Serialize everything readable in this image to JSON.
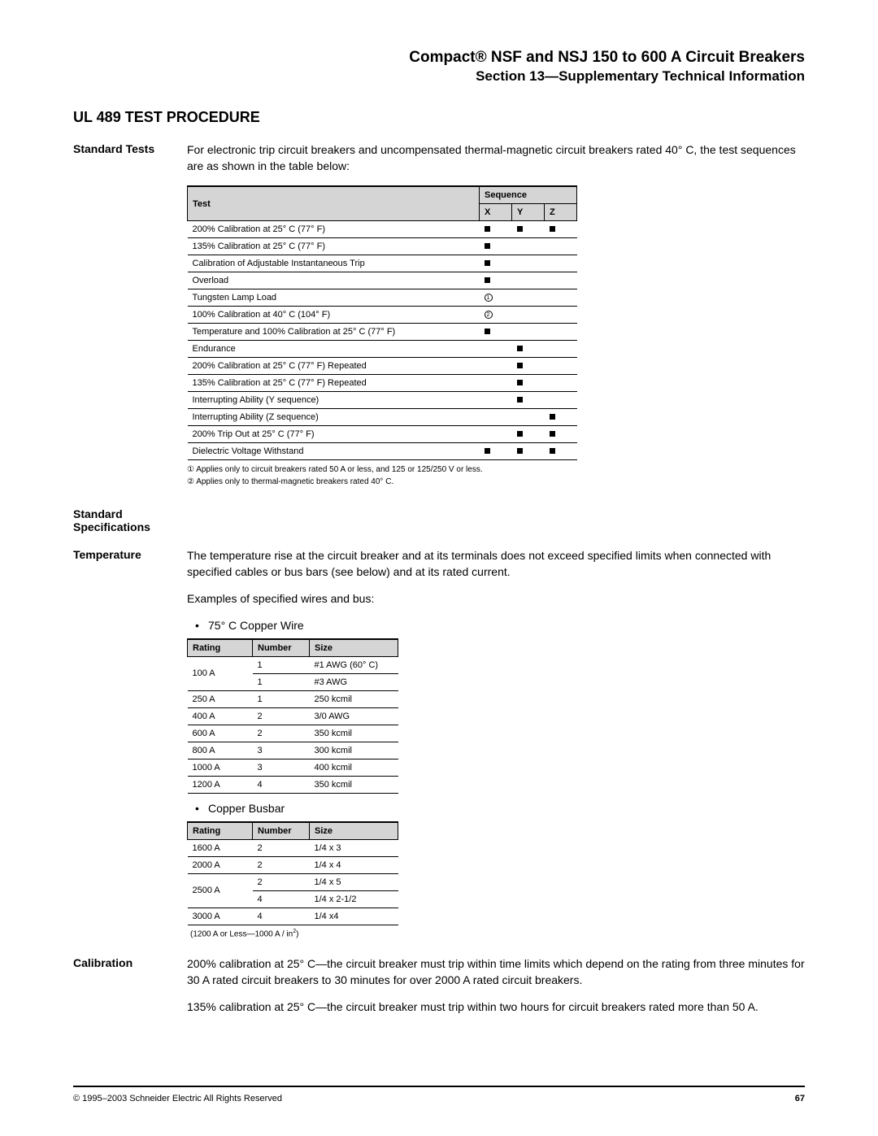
{
  "header": {
    "title": "Compact® NSF and NSJ 150 to 600 A Circuit Breakers",
    "subtitle": "Section 13—Supplementary Technical Information"
  },
  "section_heading": "UL 489 TEST PROCEDURE",
  "standard_tests": {
    "label": "Standard Tests",
    "intro": "For electronic trip circuit breakers and uncompensated thermal-magnetic circuit breakers rated 40° C, the test sequences are as shown in the table below:",
    "table": {
      "col_test": "Test",
      "col_sequence": "Sequence",
      "col_x": "X",
      "col_y": "Y",
      "col_z": "Z",
      "rows": [
        {
          "test": "200% Calibration at 25° C (77° F)",
          "x": "■",
          "y": "■",
          "z": "■"
        },
        {
          "test": "135% Calibration at 25° C (77° F)",
          "x": "■",
          "y": "",
          "z": ""
        },
        {
          "test": "Calibration of Adjustable Instantaneous Trip",
          "x": "■",
          "y": "",
          "z": ""
        },
        {
          "test": "Overload",
          "x": "■",
          "y": "",
          "z": ""
        },
        {
          "test": "Tungsten Lamp Load",
          "x": "①",
          "y": "",
          "z": ""
        },
        {
          "test": "100% Calibration at 40° C (104° F)",
          "x": "②",
          "y": "",
          "z": ""
        },
        {
          "test": "Temperature and 100% Calibration at 25° C (77° F)",
          "x": "■",
          "y": "",
          "z": ""
        },
        {
          "test": "Endurance",
          "x": "",
          "y": "■",
          "z": ""
        },
        {
          "test": "200% Calibration at 25° C (77° F) Repeated",
          "x": "",
          "y": "■",
          "z": ""
        },
        {
          "test": "135% Calibration at 25° C (77° F) Repeated",
          "x": "",
          "y": "■",
          "z": ""
        },
        {
          "test": "Interrupting Ability (Y sequence)",
          "x": "",
          "y": "■",
          "z": ""
        },
        {
          "test": "Interrupting Ability (Z sequence)",
          "x": "",
          "y": "",
          "z": "■"
        },
        {
          "test": "200% Trip Out at 25° C (77° F)",
          "x": "",
          "y": "■",
          "z": "■"
        },
        {
          "test": "Dielectric Voltage Withstand",
          "x": "■",
          "y": "■",
          "z": "■"
        }
      ]
    },
    "footnote1": "① Applies only to circuit breakers rated 50 A or less, and 125 or 125/250 V or less.",
    "footnote2": "② Applies only to thermal-magnetic breakers rated 40° C."
  },
  "standard_specs": {
    "label_line1": "Standard",
    "label_line2": "Specifications"
  },
  "temperature": {
    "label": "Temperature",
    "para1": "The temperature rise at the circuit breaker and at its terminals does not exceed specified limits when connected with specified cables or bus bars (see below) and at its rated current.",
    "para2": "Examples of specified wires and bus:",
    "bullet1": "75° C Copper Wire",
    "wire_table": {
      "col_rating": "Rating",
      "col_number": "Number",
      "col_size": "Size",
      "rows": [
        {
          "rating": "100 A",
          "number": "1",
          "size": "#1 AWG (60° C)",
          "rowspan": 2
        },
        {
          "rating": "",
          "number": "1",
          "size": "#3 AWG"
        },
        {
          "rating": "250 A",
          "number": "1",
          "size": "250 kcmil"
        },
        {
          "rating": "400 A",
          "number": "2",
          "size": "3/0 AWG"
        },
        {
          "rating": "600 A",
          "number": "2",
          "size": "350 kcmil"
        },
        {
          "rating": "800 A",
          "number": "3",
          "size": "300 kcmil"
        },
        {
          "rating": "1000 A",
          "number": "3",
          "size": "400 kcmil"
        },
        {
          "rating": "1200 A",
          "number": "4",
          "size": "350 kcmil"
        }
      ]
    },
    "bullet2": "Copper Busbar",
    "busbar_table": {
      "col_rating": "Rating",
      "col_number": "Number",
      "col_size": "Size",
      "rows": [
        {
          "rating": "1600 A",
          "number": "2",
          "size": "1/4 x 3"
        },
        {
          "rating": "2000 A",
          "number": "2",
          "size": "1/4 x 4"
        },
        {
          "rating": "2500 A",
          "number": "2",
          "size": "1/4 x 5",
          "rowspan": 2
        },
        {
          "rating": "",
          "number": "4",
          "size": "1/4 x 2-1/2"
        },
        {
          "rating": "3000 A",
          "number": "4",
          "size": "1/4 x4"
        }
      ]
    },
    "busbar_footnote_pre": "(1200 A or Less—1000 A / in",
    "busbar_footnote_sup": "2",
    "busbar_footnote_post": ")"
  },
  "calibration": {
    "label": "Calibration",
    "para1": "200% calibration at 25° C—the circuit breaker must trip within time limits which depend on the rating from three minutes for 30 A rated circuit breakers to 30 minutes for over 2000 A rated circuit breakers.",
    "para2": "135% calibration at 25° C—the circuit breaker must trip within two hours for circuit breakers rated more than 50 A."
  },
  "footer": {
    "copyright": "© 1995–2003 Schneider Electric All Rights Reserved",
    "page": "67"
  }
}
